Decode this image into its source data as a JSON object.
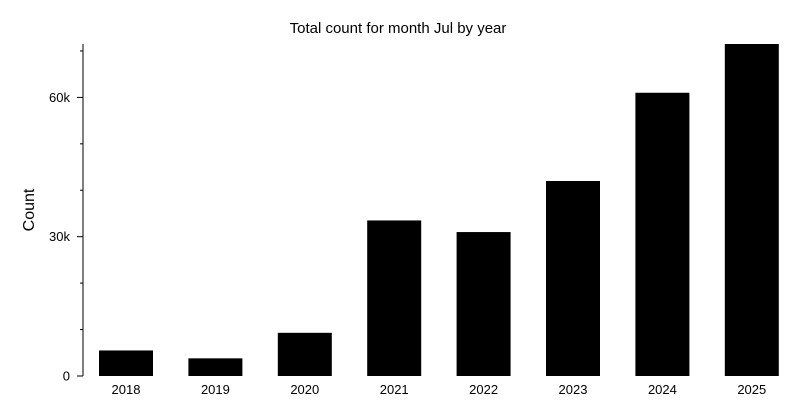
{
  "chart_data": {
    "type": "bar",
    "title": "Total count for month Jul by year",
    "xlabel": "",
    "ylabel": "Count",
    "categories": [
      "2018",
      "2019",
      "2020",
      "2021",
      "2022",
      "2023",
      "2024",
      "2025"
    ],
    "values": [
      5500,
      3800,
      9300,
      33500,
      31000,
      42000,
      61000,
      71500
    ],
    "ylim": [
      0,
      71500
    ],
    "yticks": [
      0,
      30000,
      60000
    ],
    "ytick_labels": [
      "0",
      "30k",
      "60k"
    ],
    "grid": false,
    "bar_color": "#000000",
    "legend": null
  }
}
